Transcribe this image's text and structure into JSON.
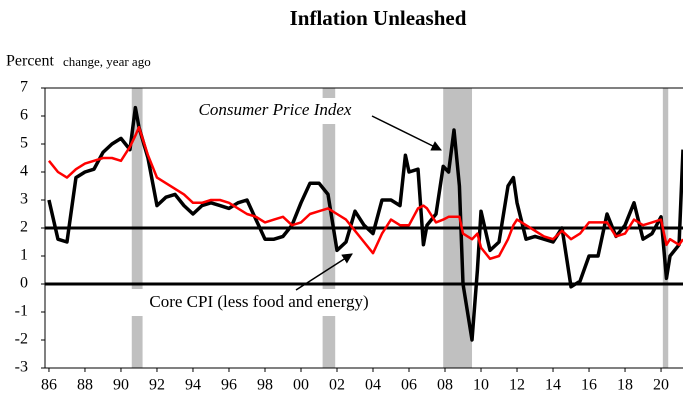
{
  "chart_data": {
    "type": "line",
    "title": "Inflation Unleashed",
    "y_label": "Percent",
    "y_label_note": "change, year ago",
    "annotations": [
      "Consumer Price Index",
      "Core CPI (less food and energy)"
    ],
    "x": [
      1986,
      1986.5,
      1987,
      1987.5,
      1988,
      1988.5,
      1989,
      1989.5,
      1990,
      1990.5,
      1990.8,
      1991,
      1991.5,
      1992,
      1992.5,
      1993,
      1993.5,
      1994,
      1994.5,
      1995,
      1995.5,
      1996,
      1996.5,
      1997,
      1997.5,
      1998,
      1998.5,
      1999,
      1999.5,
      2000,
      2000.5,
      2001,
      2001.5,
      2002,
      2002.5,
      2003,
      2003.5,
      2004,
      2004.5,
      2005,
      2005.5,
      2005.8,
      2006,
      2006.5,
      2006.8,
      2007,
      2007.5,
      2007.9,
      2008.2,
      2008.5,
      2008.8,
      2009,
      2009.5,
      2009.8,
      2010,
      2010.5,
      2011,
      2011.5,
      2011.8,
      2012,
      2012.5,
      2013,
      2013.5,
      2014,
      2014.5,
      2015,
      2015.5,
      2016,
      2016.5,
      2017,
      2017.5,
      2018,
      2018.5,
      2019,
      2019.5,
      2020,
      2020.3,
      2020.5,
      2021,
      2021.22
    ],
    "series": [
      {
        "name": "Consumer Price Index",
        "color": "#000000",
        "width": 3.5,
        "values": [
          3.0,
          1.6,
          1.5,
          3.8,
          4.0,
          4.1,
          4.7,
          5.0,
          5.2,
          4.8,
          6.3,
          5.6,
          4.5,
          2.8,
          3.1,
          3.2,
          2.8,
          2.5,
          2.8,
          2.9,
          2.8,
          2.7,
          2.9,
          3.0,
          2.3,
          1.6,
          1.6,
          1.7,
          2.1,
          2.9,
          3.6,
          3.6,
          3.2,
          1.2,
          1.5,
          2.6,
          2.1,
          1.8,
          3.0,
          3.0,
          2.8,
          4.6,
          4.0,
          4.1,
          1.4,
          2.1,
          2.5,
          4.2,
          4.0,
          5.5,
          3.5,
          0.0,
          -2.0,
          0.5,
          2.6,
          1.2,
          1.5,
          3.5,
          3.8,
          2.9,
          1.6,
          1.7,
          1.6,
          1.5,
          2.0,
          -0.1,
          0.1,
          1.0,
          1.0,
          2.5,
          1.7,
          2.1,
          2.9,
          1.6,
          1.8,
          2.4,
          0.2,
          1.0,
          1.4,
          4.8
        ]
      },
      {
        "name": "Core CPI (less food and energy)",
        "color": "#ff0000",
        "width": 2.5,
        "values": [
          4.4,
          4.0,
          3.8,
          4.1,
          4.3,
          4.4,
          4.5,
          4.5,
          4.4,
          4.9,
          5.3,
          5.6,
          4.6,
          3.8,
          3.6,
          3.4,
          3.2,
          2.9,
          2.9,
          3.0,
          3.0,
          2.9,
          2.7,
          2.5,
          2.4,
          2.2,
          2.3,
          2.4,
          2.1,
          2.2,
          2.5,
          2.6,
          2.7,
          2.5,
          2.3,
          1.9,
          1.5,
          1.1,
          1.8,
          2.3,
          2.1,
          2.1,
          2.1,
          2.7,
          2.8,
          2.7,
          2.2,
          2.3,
          2.4,
          2.4,
          2.4,
          1.8,
          1.6,
          1.8,
          1.3,
          0.9,
          1.0,
          1.6,
          2.1,
          2.3,
          2.1,
          1.9,
          1.7,
          1.6,
          1.9,
          1.6,
          1.8,
          2.2,
          2.2,
          2.2,
          1.7,
          1.8,
          2.3,
          2.1,
          2.2,
          2.3,
          1.4,
          1.6,
          1.4,
          1.6
        ]
      }
    ],
    "shaded_periods": [
      [
        1990.6,
        1991.2
      ],
      [
        2001.2,
        2001.9
      ],
      [
        2007.9,
        2009.5
      ],
      [
        2020.1,
        2020.4
      ]
    ],
    "shade_color": "#c0c0c0",
    "hlines": [
      0,
      2
    ],
    "xlim": [
      1985.78,
      2021.22
    ],
    "xticks": [
      {
        "value": 1986,
        "label": "86"
      },
      {
        "value": 1988,
        "label": "88"
      },
      {
        "value": 1990,
        "label": "90"
      },
      {
        "value": 1992,
        "label": "92"
      },
      {
        "value": 1994,
        "label": "94"
      },
      {
        "value": 1996,
        "label": "96"
      },
      {
        "value": 1998,
        "label": "98"
      },
      {
        "value": 2000,
        "label": "00"
      },
      {
        "value": 2002,
        "label": "02"
      },
      {
        "value": 2004,
        "label": "04"
      },
      {
        "value": 2006,
        "label": "06"
      },
      {
        "value": 2008,
        "label": "08"
      },
      {
        "value": 2010,
        "label": "10"
      },
      {
        "value": 2012,
        "label": "12"
      },
      {
        "value": 2014,
        "label": "14"
      },
      {
        "value": 2016,
        "label": "16"
      },
      {
        "value": 2018,
        "label": "18"
      },
      {
        "value": 2020,
        "label": "20"
      }
    ],
    "ylim": [
      -3,
      7
    ],
    "yticks": [
      -3,
      -2,
      -1,
      0,
      1,
      2,
      3,
      4,
      5,
      6,
      7
    ]
  }
}
